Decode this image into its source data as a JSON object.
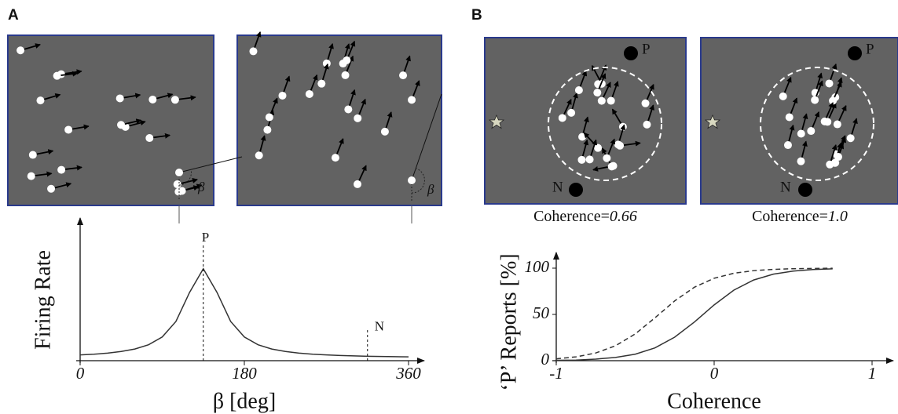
{
  "panel_labels": [
    "A",
    "B"
  ],
  "diagram": {
    "angle_label": "β",
    "p_label": "P",
    "n_label": "N",
    "captions": [
      {
        "label": "Coherence=",
        "value": "0.66"
      },
      {
        "label": "Coherence=",
        "value": "1.0"
      }
    ]
  },
  "chart_data": [
    {
      "type": "line",
      "ylabel": "Firing Rate",
      "xlabel": "β [deg]",
      "x": [
        0,
        15,
        30,
        45,
        60,
        75,
        90,
        105,
        120,
        135,
        150,
        165,
        180,
        195,
        210,
        225,
        240,
        255,
        270,
        285,
        300,
        315,
        330,
        345,
        360
      ],
      "values": [
        0.042,
        0.047,
        0.055,
        0.067,
        0.085,
        0.116,
        0.173,
        0.286,
        0.498,
        0.67,
        0.498,
        0.286,
        0.173,
        0.116,
        0.085,
        0.067,
        0.055,
        0.047,
        0.042,
        0.038,
        0.035,
        0.032,
        0.031,
        0.029,
        0.028
      ],
      "color": "#333333",
      "xlim": [
        0,
        360
      ],
      "xticks": [
        0,
        180,
        360
      ],
      "ylim": [
        0,
        1
      ],
      "markers": [
        {
          "label": "P",
          "x": 135
        },
        {
          "label": "N",
          "x": 315
        }
      ]
    },
    {
      "type": "line",
      "ylabel": "‘P’ Reports [%]",
      "xlabel": "Coherence",
      "x": [
        -1,
        -0.875,
        -0.75,
        -0.625,
        -0.5,
        -0.375,
        -0.25,
        -0.125,
        0,
        0.125,
        0.25,
        0.375,
        0.5,
        0.625,
        0.75
      ],
      "series": [
        {
          "color": "#333333",
          "dashed": false,
          "values": [
            0.4,
            0.6,
            1.7,
            3.5,
            7.0,
            13.8,
            25.4,
            41.8,
            60.3,
            76.3,
            87.2,
            93.5,
            96.8,
            98.5,
            99.3
          ]
        },
        {
          "color": "#333333",
          "dashed": true,
          "values": [
            2.0,
            4.1,
            8.3,
            16.1,
            28.9,
            46.3,
            64.6,
            79.4,
            89.1,
            94.5,
            97.3,
            98.7,
            99.4,
            99.7,
            99.9
          ]
        }
      ],
      "xlim": [
        -1,
        1
      ],
      "xticks": [
        -1,
        0,
        1
      ],
      "ylim": [
        0,
        100
      ],
      "yticks": [
        0,
        50,
        100
      ]
    }
  ]
}
